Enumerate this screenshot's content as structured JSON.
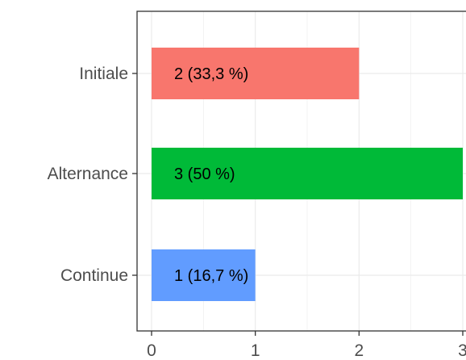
{
  "chart_data": {
    "type": "bar",
    "orientation": "horizontal",
    "categories": [
      "Initiale",
      "Alternance",
      "Continue"
    ],
    "values": [
      2,
      3,
      1
    ],
    "data_labels": [
      "2 (33,3 %)",
      "3 (50 %)",
      "1 (16,7 %)"
    ],
    "colors": [
      "#F8766D",
      "#00BA38",
      "#619CFF"
    ],
    "x_ticks": [
      "0",
      "1",
      "2",
      "3"
    ],
    "xlim": [
      0,
      3
    ],
    "title": "",
    "xlabel": "",
    "ylabel": "",
    "grid": true,
    "legend": "none"
  }
}
